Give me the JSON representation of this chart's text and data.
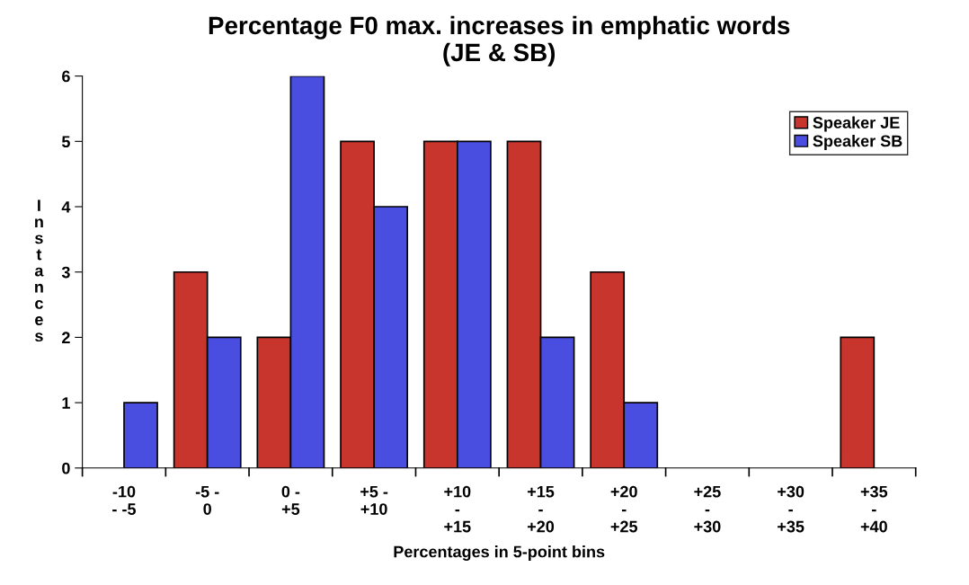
{
  "chart_data": {
    "type": "bar",
    "title": "Percentage F0 max. increases in emphatic words\n(JE & SB)",
    "xlabel": "Percentages in 5-point bins",
    "ylabel": "Instances",
    "categories": [
      "-10\n- -5",
      "-5 -\n0",
      "0 -\n+5",
      "+5 -\n+10",
      "+10\n-\n+15",
      "+15\n-\n+20",
      "+20\n-\n+25",
      "+25\n-\n+30",
      "+30\n-\n+35",
      "+35\n-\n+40"
    ],
    "series": [
      {
        "name": "Speaker JE",
        "color": "#c8352c",
        "values": [
          0,
          3,
          2,
          5,
          5,
          5,
          3,
          0,
          0,
          2
        ]
      },
      {
        "name": "Speaker SB",
        "color": "#4a4ee0",
        "values": [
          1,
          2,
          6,
          4,
          5,
          2,
          1,
          0,
          0,
          0
        ]
      }
    ],
    "ylim": [
      0,
      6
    ],
    "yticks": [
      0,
      1,
      2,
      3,
      4,
      5,
      6
    ],
    "grid": false,
    "legend": "top right"
  }
}
